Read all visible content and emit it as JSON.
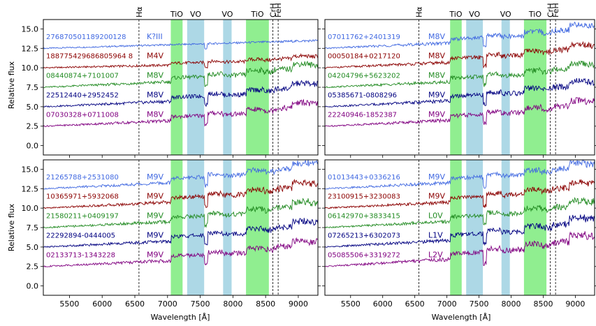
{
  "figure": {
    "x_label": "Wavelength [Å]",
    "y_label": "Relative flux",
    "band_colors": {
      "TiO": "#90ee90",
      "VO": "#add8e6"
    },
    "x_ticks": [
      5500,
      6000,
      6500,
      7000,
      7500,
      8000,
      8500,
      9000
    ],
    "y_ticks": [
      0.0,
      2.5,
      5.0,
      7.5,
      10.0,
      12.5,
      15.0
    ]
  },
  "chart_data": [
    {
      "type": "line",
      "panel": "top-left",
      "xlim": [
        5100,
        9300
      ],
      "ylim": [
        -1.2,
        16.2
      ],
      "features": [
        {
          "label": "Hα",
          "kind": "line",
          "x": 6563
        },
        {
          "label": "TiO",
          "kind": "band",
          "x": [
            7050,
            7230
          ]
        },
        {
          "label": "VO",
          "kind": "band",
          "x": [
            7300,
            7560
          ]
        },
        {
          "label": "VO",
          "kind": "band",
          "x": [
            7850,
            7980
          ]
        },
        {
          "label": "TiO",
          "kind": "band",
          "x": [
            8200,
            8550
          ]
        },
        {
          "label": "CrH",
          "kind": "line",
          "x": 8611
        },
        {
          "label": "FeH",
          "kind": "line",
          "x": 8692
        }
      ],
      "series": [
        {
          "name": "276870501189200128",
          "spectral_type": "K?III",
          "color": "#4169e1",
          "offset": 12.5
        },
        {
          "name": "188775429686805964 8",
          "spectral_type": "M4V",
          "color": "#8b0000",
          "offset": 10.0
        },
        {
          "name": "08440874+7101007",
          "spectral_type": "M8V",
          "color": "#228b22",
          "offset": 7.5
        },
        {
          "name": "22512440+2952452",
          "spectral_type": "M8V",
          "color": "#000080",
          "offset": 5.0
        },
        {
          "name": "07030328+0711008",
          "spectral_type": "M8V",
          "color": "#800080",
          "offset": 2.5
        }
      ]
    },
    {
      "type": "line",
      "panel": "top-right",
      "xlim": [
        5100,
        9300
      ],
      "ylim": [
        -1.2,
        16.2
      ],
      "features": [
        {
          "label": "Hα",
          "kind": "line",
          "x": 6563
        },
        {
          "label": "TiO",
          "kind": "band",
          "x": [
            7050,
            7230
          ]
        },
        {
          "label": "VO",
          "kind": "band",
          "x": [
            7300,
            7560
          ]
        },
        {
          "label": "VO",
          "kind": "band",
          "x": [
            7850,
            7980
          ]
        },
        {
          "label": "TiO",
          "kind": "band",
          "x": [
            8200,
            8550
          ]
        },
        {
          "label": "CrH",
          "kind": "line",
          "x": 8611
        },
        {
          "label": "FeH",
          "kind": "line",
          "x": 8692
        }
      ],
      "series": [
        {
          "name": "07011762+2401319",
          "spectral_type": "M8V",
          "color": "#4169e1",
          "offset": 12.5
        },
        {
          "name": "00050184+0217120",
          "spectral_type": "M8V",
          "color": "#8b0000",
          "offset": 10.0
        },
        {
          "name": "04204796+5623202",
          "spectral_type": "M8V",
          "color": "#228b22",
          "offset": 7.5
        },
        {
          "name": "05385671-0808296",
          "spectral_type": "M9V",
          "color": "#000080",
          "offset": 5.0
        },
        {
          "name": "22240946-1852387",
          "spectral_type": "M9V",
          "color": "#800080",
          "offset": 2.5
        }
      ]
    },
    {
      "type": "line",
      "panel": "bottom-left",
      "xlim": [
        5100,
        9300
      ],
      "ylim": [
        -1.2,
        16.2
      ],
      "features": [
        {
          "label": "Hα",
          "kind": "line",
          "x": 6563
        },
        {
          "label": "TiO",
          "kind": "band",
          "x": [
            7050,
            7230
          ]
        },
        {
          "label": "VO",
          "kind": "band",
          "x": [
            7300,
            7560
          ]
        },
        {
          "label": "VO",
          "kind": "band",
          "x": [
            7850,
            7980
          ]
        },
        {
          "label": "TiO",
          "kind": "band",
          "x": [
            8200,
            8550
          ]
        },
        {
          "label": "CrH",
          "kind": "line",
          "x": 8611
        },
        {
          "label": "FeH",
          "kind": "line",
          "x": 8692
        }
      ],
      "series": [
        {
          "name": "21265788+2531080",
          "spectral_type": "M9V",
          "color": "#4169e1",
          "offset": 12.5
        },
        {
          "name": "10365971+5932068",
          "spectral_type": "M9V",
          "color": "#8b0000",
          "offset": 10.0
        },
        {
          "name": "21580211+0409197",
          "spectral_type": "M9V",
          "color": "#228b22",
          "offset": 7.5
        },
        {
          "name": "22292894-0444005",
          "spectral_type": "M9V",
          "color": "#000080",
          "offset": 5.0
        },
        {
          "name": "02133713-1343228",
          "spectral_type": "M9V",
          "color": "#800080",
          "offset": 2.5
        }
      ]
    },
    {
      "type": "line",
      "panel": "bottom-right",
      "xlim": [
        5100,
        9300
      ],
      "ylim": [
        -1.2,
        16.2
      ],
      "features": [
        {
          "label": "Hα",
          "kind": "line",
          "x": 6563
        },
        {
          "label": "TiO",
          "kind": "band",
          "x": [
            7050,
            7230
          ]
        },
        {
          "label": "VO",
          "kind": "band",
          "x": [
            7300,
            7560
          ]
        },
        {
          "label": "VO",
          "kind": "band",
          "x": [
            7850,
            7980
          ]
        },
        {
          "label": "TiO",
          "kind": "band",
          "x": [
            8200,
            8550
          ]
        },
        {
          "label": "CrH",
          "kind": "line",
          "x": 8611
        },
        {
          "label": "FeH",
          "kind": "line",
          "x": 8692
        }
      ],
      "series": [
        {
          "name": "01013443+0336216",
          "spectral_type": "M9V",
          "color": "#4169e1",
          "offset": 12.5
        },
        {
          "name": "23100915+3230083",
          "spectral_type": "M9V",
          "color": "#8b0000",
          "offset": 10.0
        },
        {
          "name": "06142970+3833415",
          "spectral_type": "L0V",
          "color": "#228b22",
          "offset": 7.5
        },
        {
          "name": "07265213+6302073",
          "spectral_type": "L1V",
          "color": "#000080",
          "offset": 5.0
        },
        {
          "name": "05085506+3319272",
          "spectral_type": "L2V",
          "color": "#800080",
          "offset": 2.5
        }
      ]
    }
  ]
}
